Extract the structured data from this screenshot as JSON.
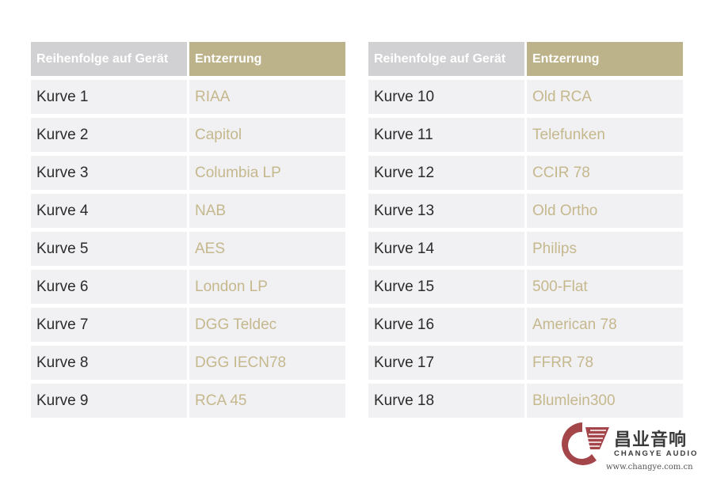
{
  "headers": {
    "order": "Reihenfolge auf Gerät",
    "eq": "Entzerrung"
  },
  "left_rows": [
    {
      "curve": "Kurve 1",
      "eq": "RIAA"
    },
    {
      "curve": "Kurve 2",
      "eq": "Capitol"
    },
    {
      "curve": "Kurve 3",
      "eq": "Columbia LP"
    },
    {
      "curve": "Kurve 4",
      "eq": "NAB"
    },
    {
      "curve": "Kurve 5",
      "eq": "AES"
    },
    {
      "curve": "Kurve 6",
      "eq": "London LP"
    },
    {
      "curve": "Kurve 7",
      "eq": "DGG Teldec"
    },
    {
      "curve": "Kurve 8",
      "eq": "DGG IECN78"
    },
    {
      "curve": "Kurve 9",
      "eq": "RCA 45"
    }
  ],
  "right_rows": [
    {
      "curve": "Kurve 10",
      "eq": "Old RCA"
    },
    {
      "curve": "Kurve 11",
      "eq": "Telefunken"
    },
    {
      "curve": "Kurve 12",
      "eq": "CCIR 78"
    },
    {
      "curve": "Kurve 13",
      "eq": "Old Ortho"
    },
    {
      "curve": "Kurve 14",
      "eq": "Philips"
    },
    {
      "curve": "Kurve 15",
      "eq": "500-Flat"
    },
    {
      "curve": "Kurve 16",
      "eq": "American 78"
    },
    {
      "curve": "Kurve 17",
      "eq": "FFRR 78"
    },
    {
      "curve": "Kurve 18",
      "eq": "Blumlein300"
    }
  ],
  "watermark": {
    "name_cn": "昌业音响",
    "name_en": "CHANGYE AUDIO",
    "url": "www.changye.com.cn"
  },
  "colors": {
    "header_gray": "#d1d1d3",
    "header_gold": "#bdb38a",
    "cell_bg": "#f1f1f3",
    "eq_text": "#c5b88d",
    "logo_red": "#a4454a"
  }
}
